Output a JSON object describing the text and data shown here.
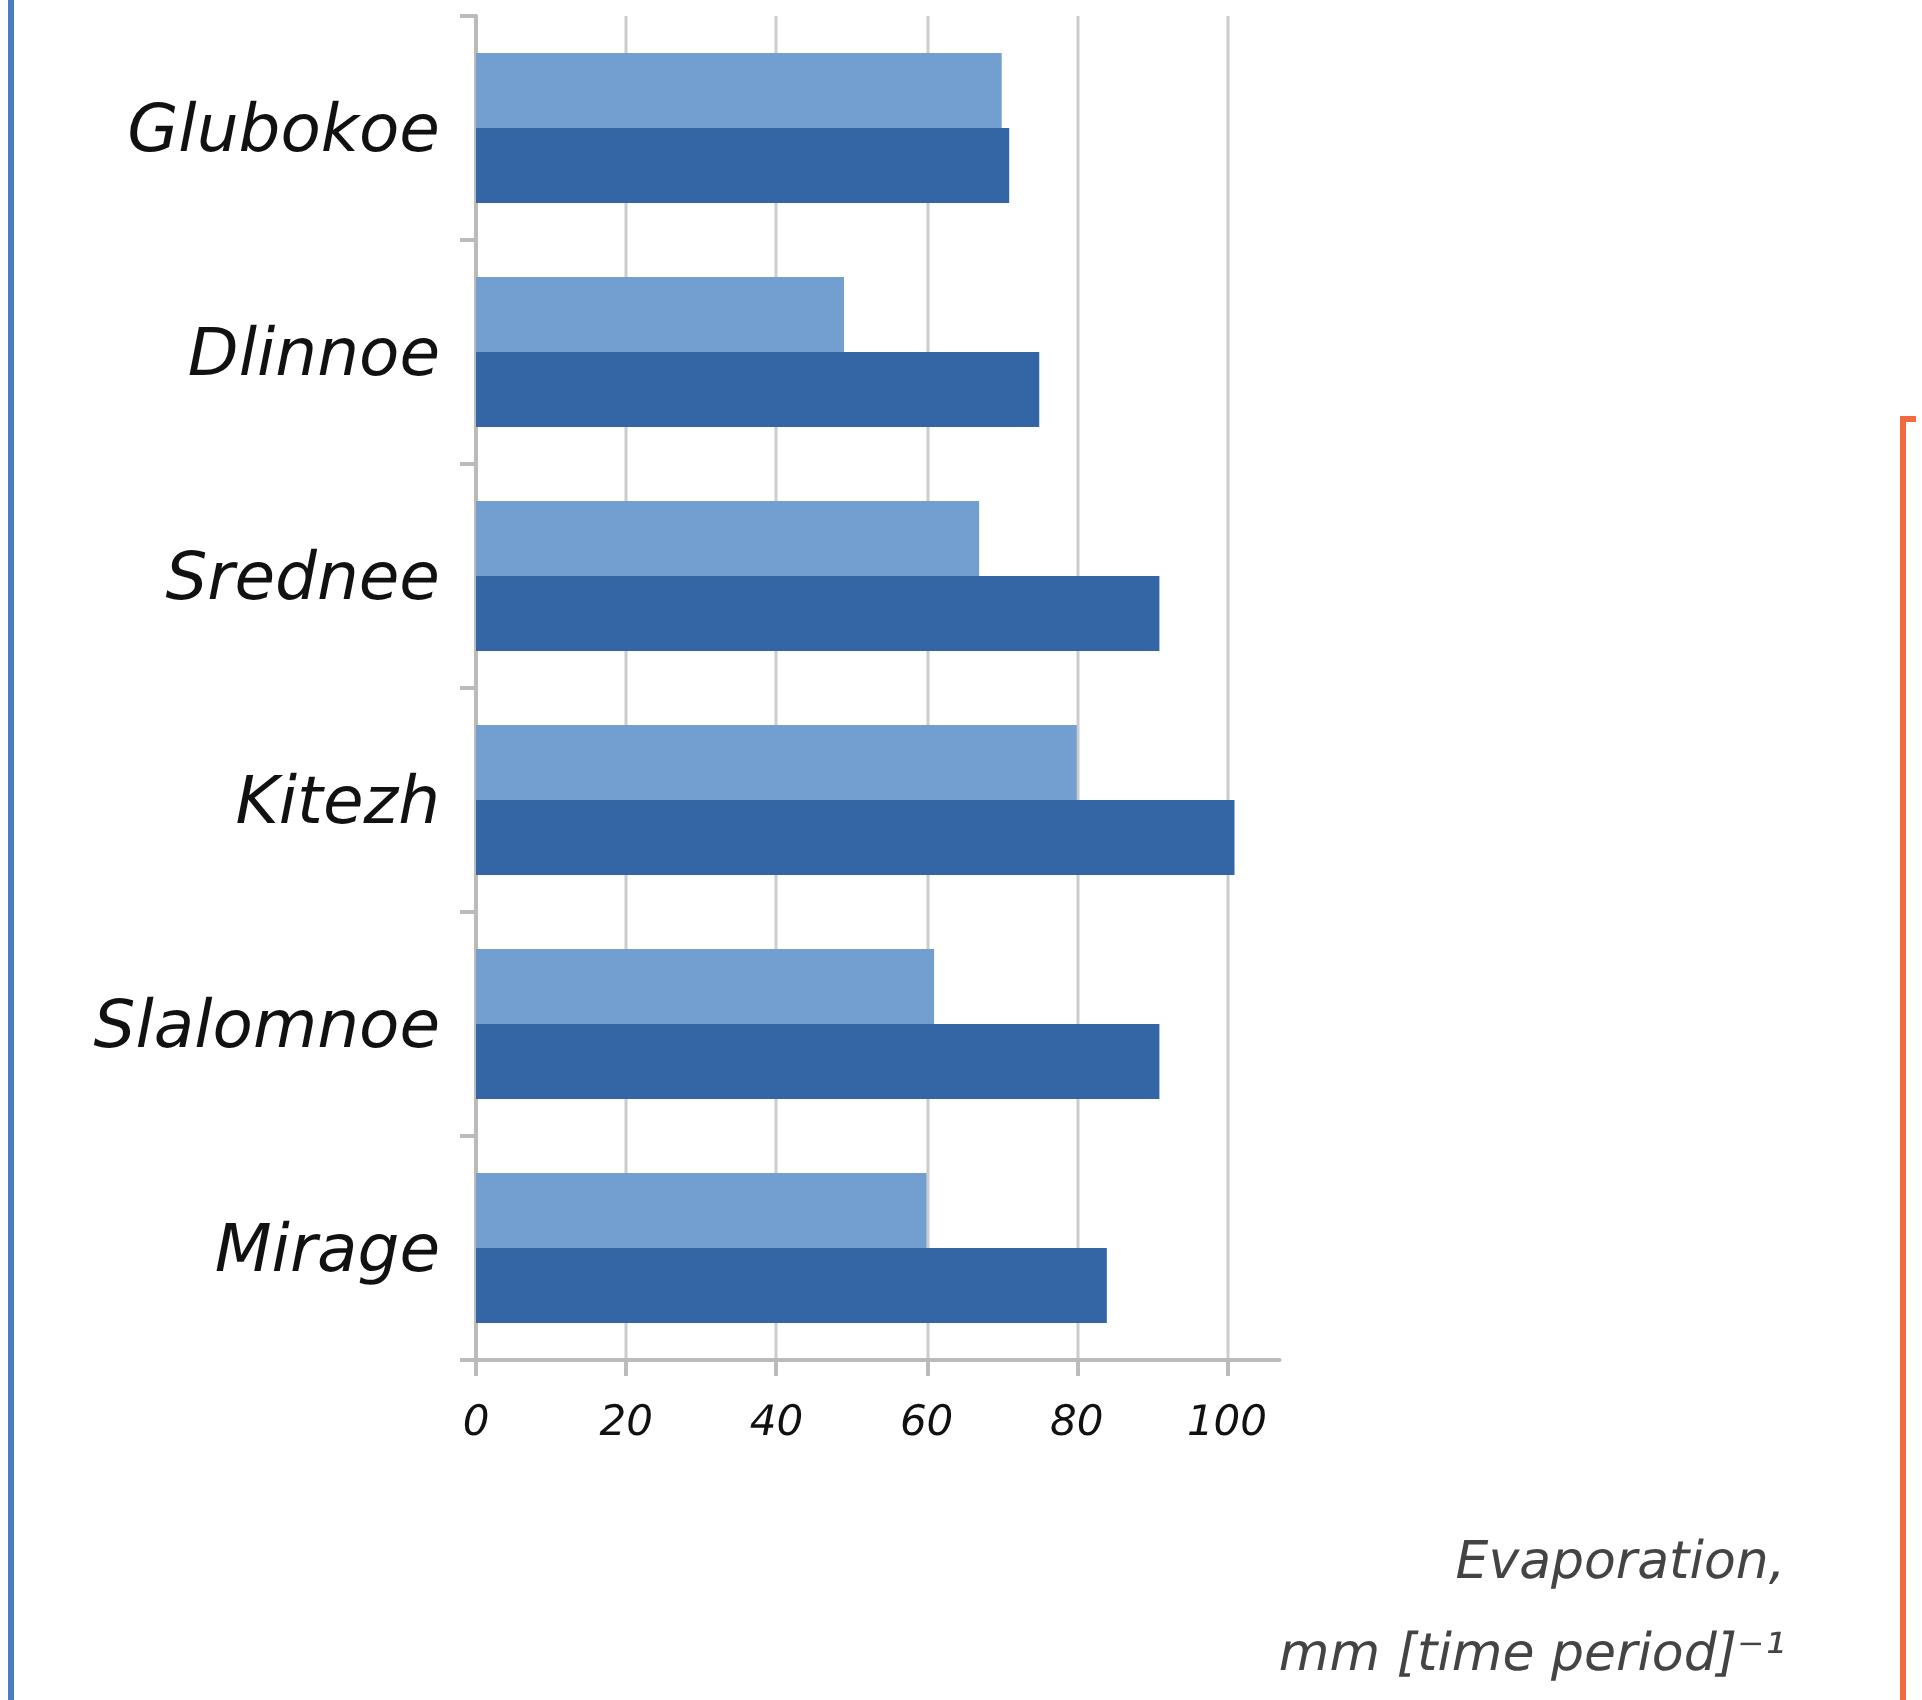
{
  "chart_data": {
    "type": "bar",
    "orientation": "horizontal",
    "xlabel": "Evaporation,\nmm [time period]⁻¹",
    "categories": [
      "Glubokoe",
      "Dlinnoe",
      "Srednee",
      "Kitezh",
      "Slalomnoe",
      "Mirage"
    ],
    "series": [
      {
        "color": "#729fcf",
        "values": [
          70,
          49,
          67,
          80,
          61,
          60
        ]
      },
      {
        "color": "#3465a4",
        "values": [
          71,
          75,
          91,
          101,
          91,
          84
        ]
      }
    ],
    "xlim": [
      0,
      107
    ],
    "xticks": [
      0,
      20,
      40,
      60,
      80,
      100
    ],
    "grid": "x"
  }
}
